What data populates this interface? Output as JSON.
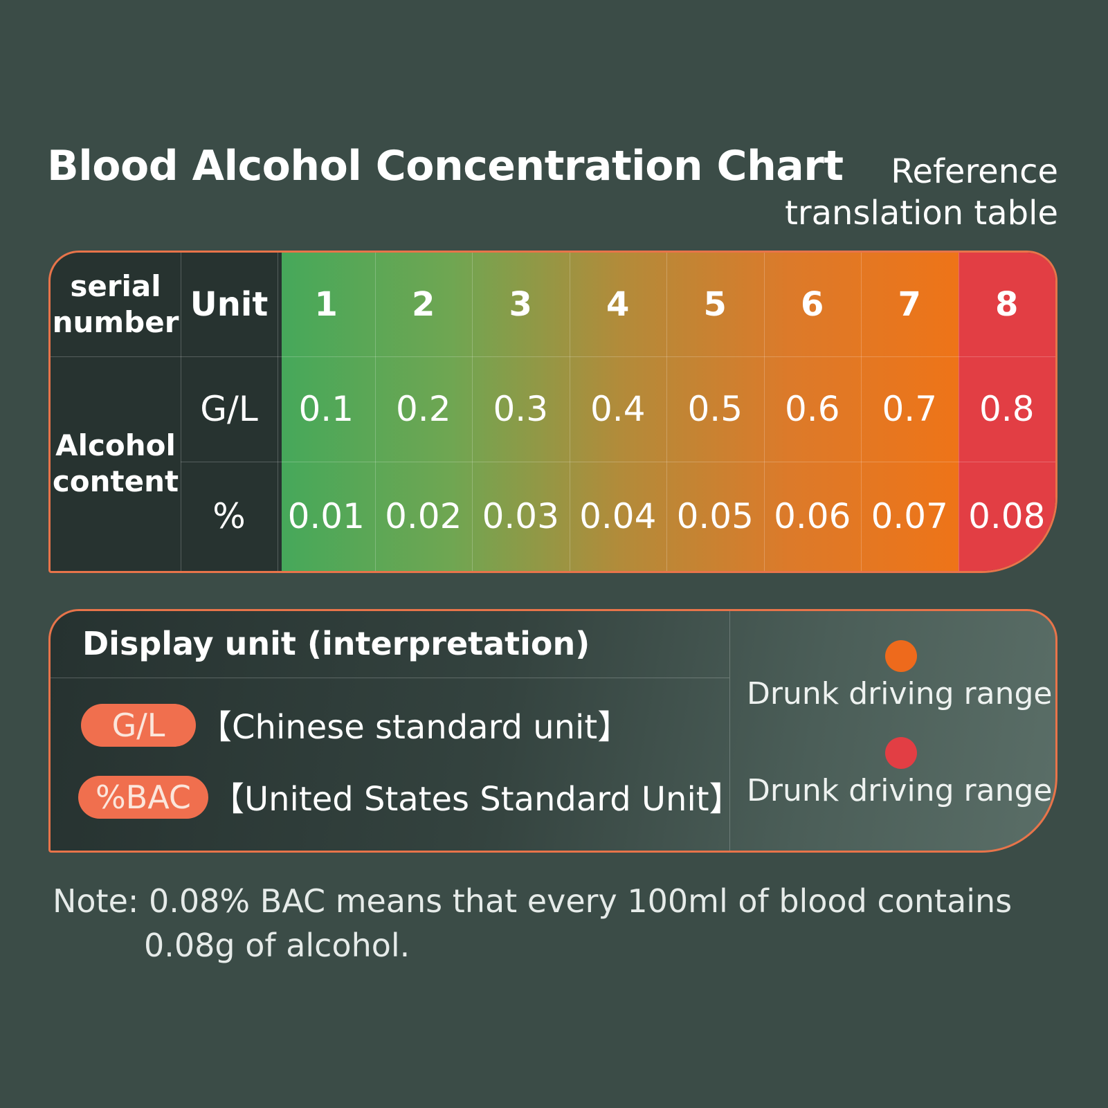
{
  "title": "Blood Alcohol Concentration Chart",
  "reference": [
    "Reference",
    "translation table"
  ],
  "table": {
    "serial_label": [
      "serial",
      "number"
    ],
    "unit_header": "Unit",
    "alcohol_label": [
      "Alcohol",
      "content"
    ],
    "row_units": [
      "G/L",
      "%"
    ],
    "serials": [
      "1",
      "2",
      "3",
      "4",
      "5",
      "6",
      "7",
      "8"
    ],
    "gl_values": [
      "0.1",
      "0.2",
      "0.3",
      "0.4",
      "0.5",
      "0.6",
      "0.7",
      "0.8"
    ],
    "pct_values": [
      "0.01",
      "0.02",
      "0.03",
      "0.04",
      "0.05",
      "0.06",
      "0.07",
      "0.08"
    ]
  },
  "legend": {
    "title": "Display unit (interpretation)",
    "units": [
      {
        "pill": "G/L",
        "desc": "【Chinese standard unit】"
      },
      {
        "pill": "%BAC",
        "desc": "【United States Standard Unit】"
      }
    ],
    "ranges": [
      {
        "label": "Drunk driving range",
        "color": "#ee6a1c"
      },
      {
        "label": "Drunk driving range",
        "color": "#e23e44"
      }
    ]
  },
  "note": [
    "Note: 0.08% BAC means that every 100ml of blood contains",
    "0.08g of alcohol."
  ],
  "colors": {
    "background": "#3b4c47",
    "border": "#e8744a",
    "pill": "#f06f4e",
    "red_column": "#e23e44"
  }
}
